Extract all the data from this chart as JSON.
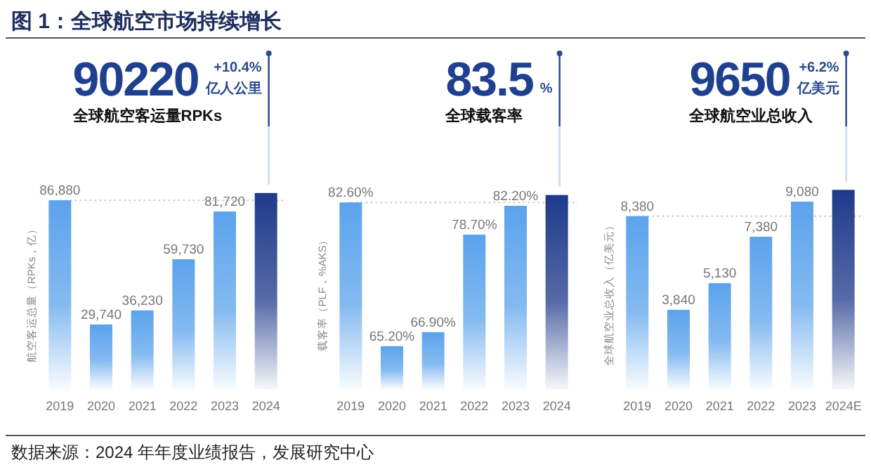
{
  "chart_data": [
    {
      "type": "other",
      "title": "图 1：全球航空市场持续增长",
      "annotations": [
        "数据来源：2024 年年度业绩报告，发展研究中心"
      ]
    },
    {
      "type": "bar",
      "categories": [
        "2019",
        "2020",
        "2021",
        "2022",
        "2023",
        "2024"
      ],
      "values": [
        86880,
        29740,
        36230,
        59730,
        81720,
        90220
      ],
      "colors": [
        "#5ba3ec",
        "#5ba3ec",
        "#5ba3ec",
        "#5ba3ec",
        "#5ba3ec",
        "#1e3a8a"
      ],
      "ylim": [
        0,
        95000
      ],
      "ylabel": "航空客运总量（RPKs，亿）",
      "value_labels": [
        "86,880",
        "29,740",
        "36,230",
        "59,730",
        "81,720",
        null
      ],
      "ref_lines": [
        {
          "axis": "y",
          "value": 86880,
          "color": "#cccccc",
          "line_style": "dotted"
        }
      ],
      "annotations": [
        {
          "text": "90220",
          "x": "2024",
          "y": 90220
        },
        "+10.4%",
        "亿人公里",
        "全球航空客运量RPKs"
      ]
    },
    {
      "type": "bar",
      "categories": [
        "2019",
        "2020",
        "2021",
        "2022",
        "2023",
        "2024"
      ],
      "values": [
        82.6,
        65.2,
        66.9,
        78.7,
        82.2,
        83.5
      ],
      "colors": [
        "#5ba3ec",
        "#5ba3ec",
        "#5ba3ec",
        "#5ba3ec",
        "#5ba3ec",
        "#1e3a8a"
      ],
      "ylim": [
        60,
        85
      ],
      "ylabel": "载客率（PLF，%AKS）",
      "value_labels": [
        "82.60%",
        "65.20%",
        "66.90%",
        "78.70%",
        "82.20%",
        null
      ],
      "ref_lines": [
        {
          "axis": "y",
          "value": 82.6,
          "color": "#cccccc",
          "line_style": "dotted"
        }
      ],
      "annotations": [
        {
          "text": "83.5",
          "x": "2024",
          "y": 83.5
        },
        "%",
        "全球载客率"
      ]
    },
    {
      "type": "bar",
      "categories": [
        "2019",
        "2020",
        "2021",
        "2022",
        "2023",
        "2024E"
      ],
      "values": [
        8380,
        3840,
        5130,
        7380,
        9080,
        9650
      ],
      "colors": [
        "#5ba3ec",
        "#5ba3ec",
        "#5ba3ec",
        "#5ba3ec",
        "#5ba3ec",
        "#1e3a8a"
      ],
      "ylim": [
        0,
        10000
      ],
      "ylabel": "全球航空业总收入（亿美元）",
      "value_labels": [
        "8,380",
        "3,840",
        "5,130",
        "7,380",
        "9,080",
        null
      ],
      "ref_lines": [
        {
          "axis": "y",
          "value": 8380,
          "color": "#cccccc",
          "line_style": "dotted"
        }
      ],
      "annotations": [
        {
          "text": "9650",
          "x": "2024E",
          "y": 9650
        },
        "+6.2%",
        "亿美元",
        "全球航空业总收入"
      ]
    }
  ]
}
